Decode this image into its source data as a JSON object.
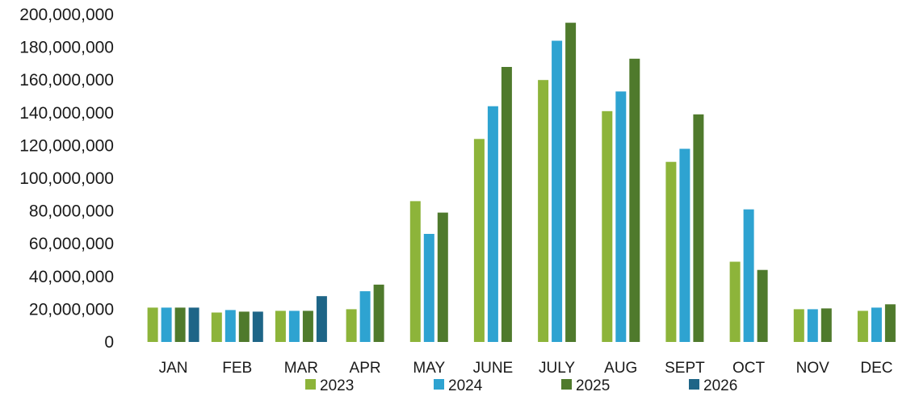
{
  "chart_data": {
    "type": "bar",
    "title": "",
    "xlabel": "",
    "ylabel": "",
    "ylim": [
      0,
      200000000
    ],
    "yticks": [
      0,
      20000000,
      40000000,
      60000000,
      80000000,
      100000000,
      120000000,
      140000000,
      160000000,
      180000000,
      200000000
    ],
    "ytick_labels": [
      "0",
      "20,000,000",
      "40,000,000",
      "60,000,000",
      "80,000,000",
      "100,000,000",
      "120,000,000",
      "140,000,000",
      "160,000,000",
      "180,000,000",
      "200,000,000"
    ],
    "grid": false,
    "legend_position": "bottom",
    "categories": [
      "JAN",
      "FEB",
      "MAR",
      "APR",
      "MAY",
      "JUNE",
      "JULY",
      "AUG",
      "SEPT",
      "OCT",
      "NOV",
      "DEC"
    ],
    "series": [
      {
        "name": "2023",
        "color": "#8db43a",
        "values": [
          21000000,
          18000000,
          19000000,
          20000000,
          86000000,
          124000000,
          160000000,
          141000000,
          110000000,
          49000000,
          20000000,
          19000000
        ]
      },
      {
        "name": "2024",
        "color": "#2ea3d1",
        "values": [
          21000000,
          19500000,
          19000000,
          31000000,
          66000000,
          144000000,
          184000000,
          153000000,
          118000000,
          81000000,
          20000000,
          21000000
        ]
      },
      {
        "name": "2025",
        "color": "#4f7a2c",
        "values": [
          21000000,
          18500000,
          19000000,
          35000000,
          79000000,
          168000000,
          195000000,
          173000000,
          139000000,
          44000000,
          20500000,
          23000000
        ]
      },
      {
        "name": "2026",
        "color": "#1e6587",
        "values": [
          21000000,
          18500000,
          28000000,
          null,
          null,
          null,
          null,
          null,
          null,
          null,
          null,
          null
        ]
      }
    ]
  }
}
